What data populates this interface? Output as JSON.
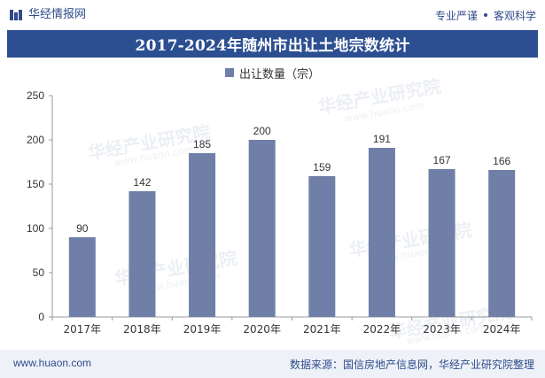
{
  "header": {
    "brand": "华经情报网",
    "right_items": [
      "专业严谨",
      "客观科学"
    ]
  },
  "watermarks": {
    "text": "华经产业研究院",
    "url": "www.huaon.com"
  },
  "footer": {
    "left": "www.huaon.com",
    "right": "数据来源：国信房地产信息网，华经产业研究院整理"
  },
  "colors": {
    "accent": "#2c4f91",
    "bar": "#6f7fa7",
    "footer_bg": "#eef2f8"
  },
  "chart_data": {
    "type": "bar",
    "title": "2017-2024年随州市出让土地宗数统计",
    "categories": [
      "2017年",
      "2018年",
      "2019年",
      "2020年",
      "2021年",
      "2022年",
      "2023年",
      "2024年"
    ],
    "series": [
      {
        "name": "出让数量（宗）",
        "values": [
          90,
          142,
          185,
          200,
          159,
          191,
          167,
          166
        ]
      }
    ],
    "xlabel": "",
    "ylabel": "",
    "ylim": [
      0,
      250
    ],
    "yticks": [
      0,
      50,
      100,
      150,
      200,
      250
    ],
    "legend_position": "top-center",
    "grid": false
  }
}
